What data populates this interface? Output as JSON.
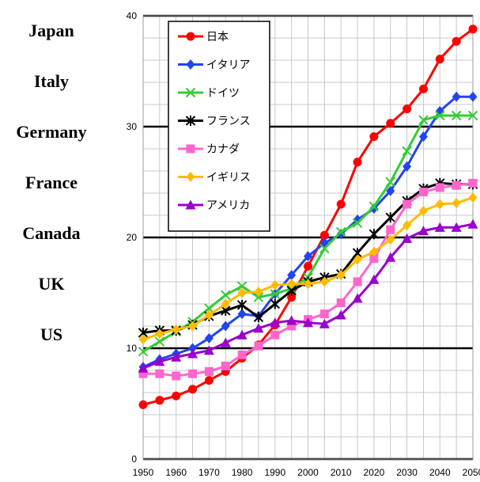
{
  "english_labels": [
    "Japan",
    "Italy",
    "Germany",
    "France",
    "Canada",
    "UK",
    "US"
  ],
  "chart_data": {
    "type": "line",
    "title": "",
    "xlabel": "",
    "ylabel": "",
    "x": [
      1950,
      1955,
      1960,
      1965,
      1970,
      1975,
      1980,
      1985,
      1990,
      1995,
      2000,
      2005,
      2010,
      2015,
      2020,
      2025,
      2030,
      2035,
      2040,
      2045,
      2050
    ],
    "x_ticks": [
      1950,
      1960,
      1970,
      1980,
      1990,
      2000,
      2010,
      2020,
      2030,
      2040,
      2050
    ],
    "ylim": [
      0,
      40
    ],
    "y_ticks": [
      0,
      10,
      20,
      30,
      40
    ],
    "grid": true,
    "legend_position": "top-left",
    "series": [
      {
        "name": "日本",
        "color": "#ff0000",
        "marker": "circle",
        "values": [
          4.9,
          5.3,
          5.7,
          6.3,
          7.1,
          7.9,
          9.1,
          10.3,
          12.1,
          14.6,
          17.4,
          20.2,
          23.0,
          26.8,
          29.1,
          30.3,
          31.6,
          33.4,
          36.1,
          37.7,
          38.8
        ]
      },
      {
        "name": "イタリア",
        "color": "#2244ee",
        "marker": "diamond",
        "values": [
          8.3,
          9.0,
          9.5,
          10.0,
          10.9,
          12.0,
          13.1,
          12.9,
          14.9,
          16.6,
          18.3,
          19.5,
          20.3,
          21.6,
          22.6,
          24.2,
          26.4,
          29.1,
          31.4,
          32.7,
          32.7
        ]
      },
      {
        "name": "ドイツ",
        "color": "#33cc33",
        "marker": "x",
        "values": [
          9.7,
          10.6,
          11.5,
          12.4,
          13.6,
          14.8,
          15.6,
          14.6,
          14.9,
          15.4,
          16.4,
          19.0,
          20.5,
          21.3,
          22.8,
          25.0,
          27.8,
          30.6,
          31.0,
          31.0,
          31.0
        ]
      },
      {
        "name": "フランス",
        "color": "#000000",
        "marker": "asterisk",
        "values": [
          11.4,
          11.6,
          11.6,
          12.1,
          12.9,
          13.4,
          13.9,
          12.8,
          14.0,
          15.2,
          16.0,
          16.4,
          16.7,
          18.6,
          20.3,
          21.8,
          23.3,
          24.4,
          24.9,
          24.8,
          24.8
        ]
      },
      {
        "name": "カナダ",
        "color": "#ff66cc",
        "marker": "square",
        "values": [
          7.7,
          7.7,
          7.5,
          7.7,
          7.9,
          8.4,
          9.4,
          10.2,
          11.2,
          12.0,
          12.6,
          13.1,
          14.1,
          16.0,
          18.1,
          20.7,
          23.0,
          24.1,
          24.5,
          24.7,
          24.9
        ]
      },
      {
        "name": "イギリス",
        "color": "#ffbb00",
        "marker": "diamond",
        "values": [
          10.8,
          11.3,
          11.7,
          12.0,
          13.0,
          14.0,
          15.0,
          15.1,
          15.7,
          15.8,
          15.8,
          16.0,
          16.6,
          18.0,
          18.7,
          19.8,
          21.1,
          22.4,
          23.0,
          23.1,
          23.6
        ]
      },
      {
        "name": "アメリカ",
        "color": "#9900cc",
        "marker": "triangle",
        "values": [
          8.2,
          8.8,
          9.2,
          9.5,
          9.8,
          10.5,
          11.2,
          11.8,
          12.3,
          12.5,
          12.3,
          12.2,
          13.0,
          14.5,
          16.2,
          18.2,
          19.9,
          20.6,
          20.9,
          20.9,
          21.2
        ]
      }
    ]
  }
}
